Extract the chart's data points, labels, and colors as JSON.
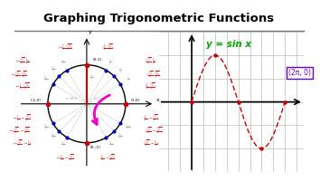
{
  "title": "Graphing Trigonometric Functions",
  "title_fontsize": 9.5,
  "title_fontweight": "bold",
  "eq_label": "y = sin x",
  "eq_color": "#00aa00",
  "eq_fontsize": 7.5,
  "annotation_text": "(2π, 0)",
  "annotation_color": "#6600cc",
  "annotation_border": "#6600cc",
  "sin_color": "#cc0000",
  "grid_color": "#bbbbbb",
  "axis_color": "#000000",
  "circle_color": "#000000",
  "dot_red": "#cc0000",
  "dot_blue": "#0000bb",
  "arrow_color": "#ee00cc",
  "bg_color": "#ffffff",
  "title_line_color": "#555555",
  "gray_text_color": "#aaaaaa",
  "red_text_color": "#cc2222"
}
